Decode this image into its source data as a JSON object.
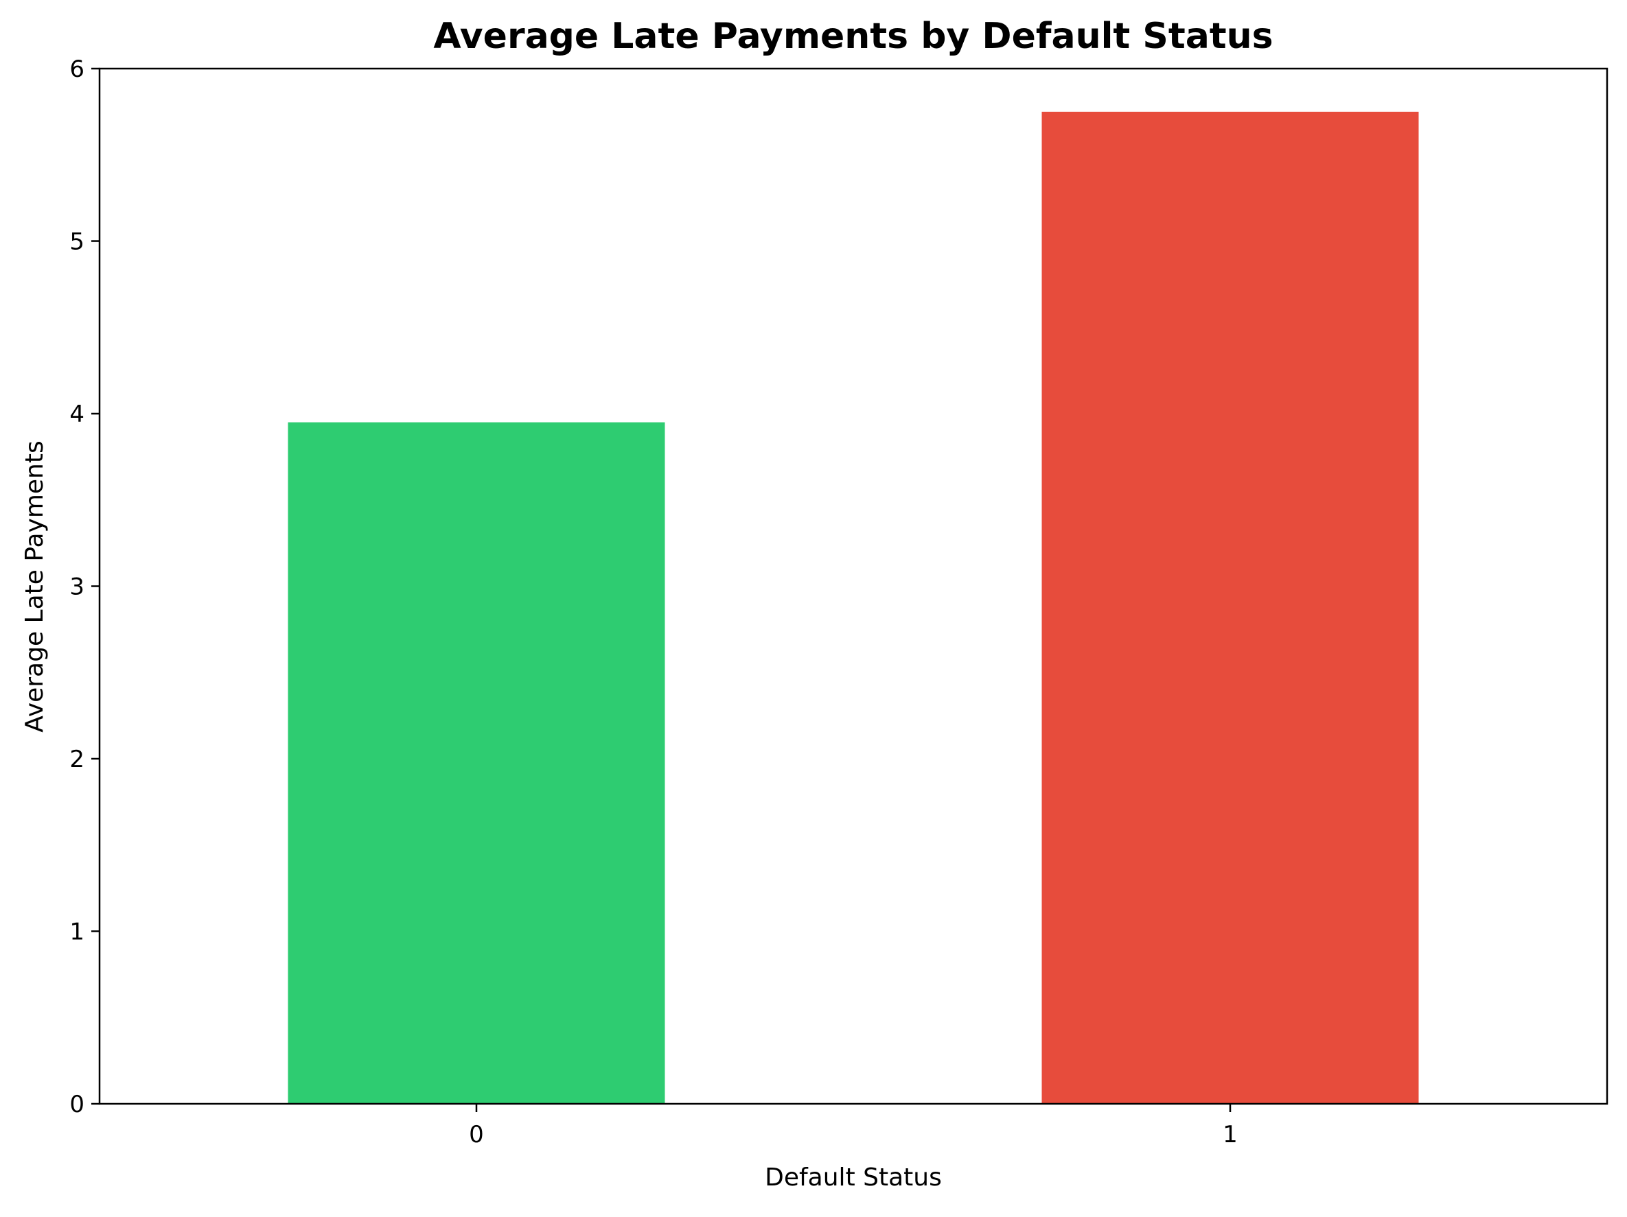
{
  "chart_data": {
    "type": "bar",
    "title": "Average Late Payments by Default Status",
    "xlabel": "Default Status",
    "ylabel": "Average Late Payments",
    "categories": [
      "0",
      "1"
    ],
    "values": [
      3.95,
      5.75
    ],
    "colors": [
      "#2ecc71",
      "#e74c3c"
    ],
    "ylim": [
      0,
      6
    ],
    "yticks": [
      "0",
      "1",
      "2",
      "3",
      "4",
      "5",
      "6"
    ],
    "grid": false,
    "legend": null
  }
}
